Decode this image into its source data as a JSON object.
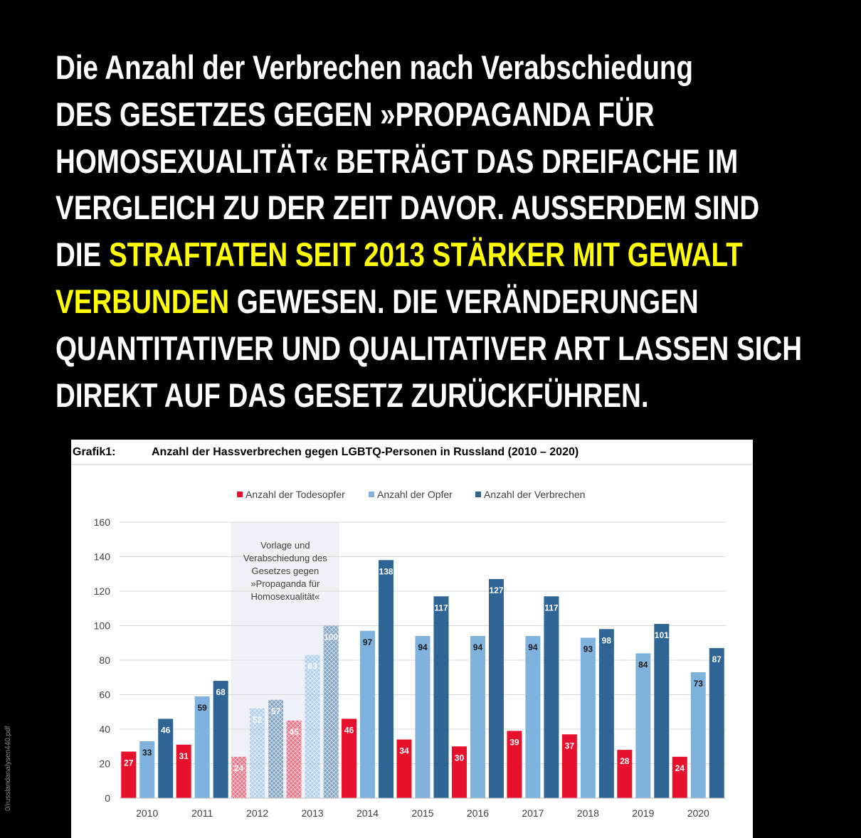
{
  "headline": {
    "line1": "Die Anzahl der Verbrechen nach Verabschiedung",
    "line2": "DES GESETZES GEGEN »PROPAGANDA FÜR",
    "line3": "HOMOSEXUALITÄT« BETRÄGT DAS DREIFACHE IM",
    "line4": "VERGLEICH ZU DER ZEIT DAVOR. AUSSERDEM SIND",
    "line5_a": "DIE ",
    "line5_b": "STRAFTATEN SEIT 2013 STÄRKER MIT GEWALT",
    "line6_a": "VERBUNDEN",
    "line6_b": " GEWESEN. DIE VERÄNDERUNGEN",
    "line7": "QUANTITATIVER UND QUALITATIVER ART LASSEN SICH",
    "line8": "DIREKT AUF DAS GESETZ ZURÜCKFÜHREN."
  },
  "source_note": "0/russlandanalysen440.pdf",
  "colors": {
    "background": "#000000",
    "text": "#ffffff",
    "highlight": "#ffff00",
    "todesopfer": "#e8112d",
    "opfer": "#7fb2dc",
    "verbrechen": "#2e6595",
    "shade": "#eef2f7"
  },
  "chart_data": {
    "type": "bar",
    "figure_label": "Grafik1:",
    "title": "Anzahl der Hassverbrechen gegen LGBTQ-Personen in Russland (2010 – 2020)",
    "categories": [
      "2010",
      "2011",
      "2012",
      "2013",
      "2014",
      "2015",
      "2016",
      "2017",
      "2018",
      "2019",
      "2020"
    ],
    "series": [
      {
        "name": "Anzahl der Todesopfer",
        "color": "#e8112d",
        "values": [
          27,
          31,
          24,
          45,
          46,
          34,
          30,
          39,
          37,
          28,
          24
        ]
      },
      {
        "name": "Anzahl der Opfer",
        "color": "#7fb2dc",
        "values": [
          33,
          59,
          52,
          83,
          97,
          94,
          94,
          94,
          93,
          84,
          73
        ]
      },
      {
        "name": "Anzahl der Verbrechen",
        "color": "#2e6595",
        "values": [
          46,
          68,
          57,
          100,
          138,
          117,
          127,
          117,
          98,
          101,
          87
        ]
      }
    ],
    "hatched_categories": [
      "2012",
      "2013"
    ],
    "annotation": "Vorlage und Verabschiedung des Gesetzes gegen »Propaganda für Homosexualität«",
    "annotation_lines": [
      "Vorlage und",
      "Verabschiedung des",
      "Gesetzes gegen",
      "»Propaganda für",
      "Homosexualität«"
    ],
    "ylim": [
      0,
      160
    ],
    "yticks": [
      0,
      20,
      40,
      60,
      80,
      100,
      120,
      140,
      160
    ],
    "grid": true,
    "legend_position": "top"
  }
}
